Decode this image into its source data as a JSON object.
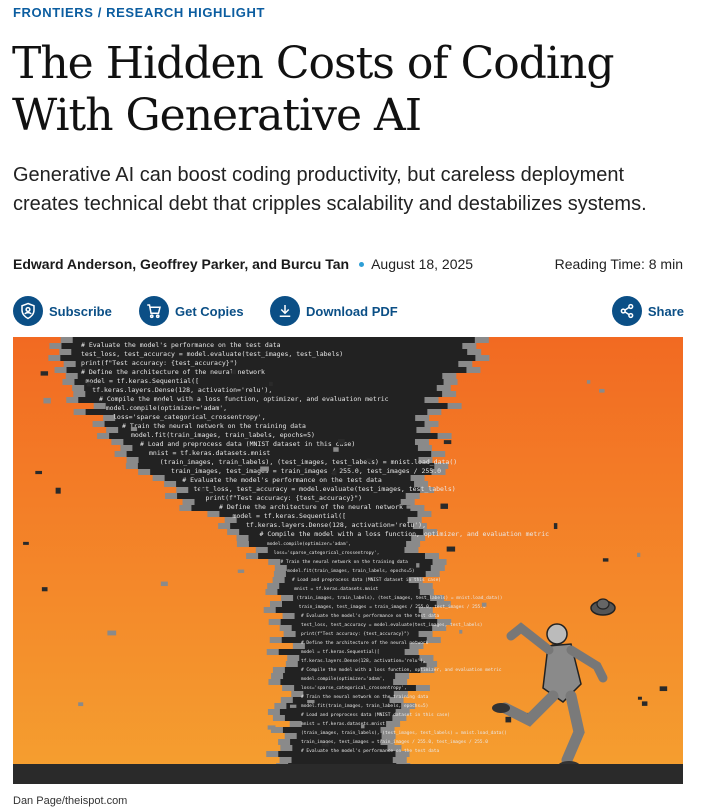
{
  "kicker": {
    "section": "FRONTIERS",
    "separator": " / ",
    "subsection": "RESEARCH HIGHLIGHT"
  },
  "article": {
    "title": "The Hidden Costs of Coding With Generative AI",
    "dek": "Generative AI can boost coding productivity, but careless deployment creates technical debt that cripples scalability and destabilizes systems.",
    "authors": "Edward Anderson, Geoffrey Parker, and Burcu Tan",
    "date": "August 18, 2025",
    "reading_time": "Reading Time: 8 min"
  },
  "toolbar": {
    "subscribe": {
      "label": "Subscribe",
      "icon": "shield-person-icon"
    },
    "get_copies": {
      "label": "Get Copies",
      "icon": "cart-icon"
    },
    "download": {
      "label": "Download PDF",
      "icon": "download-icon"
    },
    "share": {
      "label": "Share",
      "icon": "share-icon"
    }
  },
  "hero": {
    "credit": "Dan Page/theispot.com",
    "code_lines": [
      "# Evaluate the model's performance on the test data",
      "test_loss, test_accuracy = model.evaluate(test_images, test_labels)",
      "print(f\"Test accuracy: {test_accuracy}\")",
      "# Define the architecture of the neural network",
      "model = tf.keras.Sequential([",
      "  tf.keras.layers.Dense(128, activation='relu'),",
      "# Compile the model with a loss function, optimizer, and evaluation metric",
      "model.compile(optimizer='adam',",
      "  loss='sparse_categorical_crossentropy',",
      "# Train the neural network on the training data",
      "model.fit(train_images, train_labels, epochs=5)",
      "# Load and preprocess data (MNIST dataset in this case)",
      "mnist = tf.keras.datasets.mnist",
      "(train_images, train_labels), (test_images, test_labels) = mnist.load_data()",
      "train_images, test_images = train_images / 255.0, test_images / 255.0"
    ],
    "colors": {
      "sky_top": "#f26a22",
      "sky_bottom": "#f5a030",
      "tornado": "#222222",
      "ground": "#2a2a2a"
    }
  }
}
